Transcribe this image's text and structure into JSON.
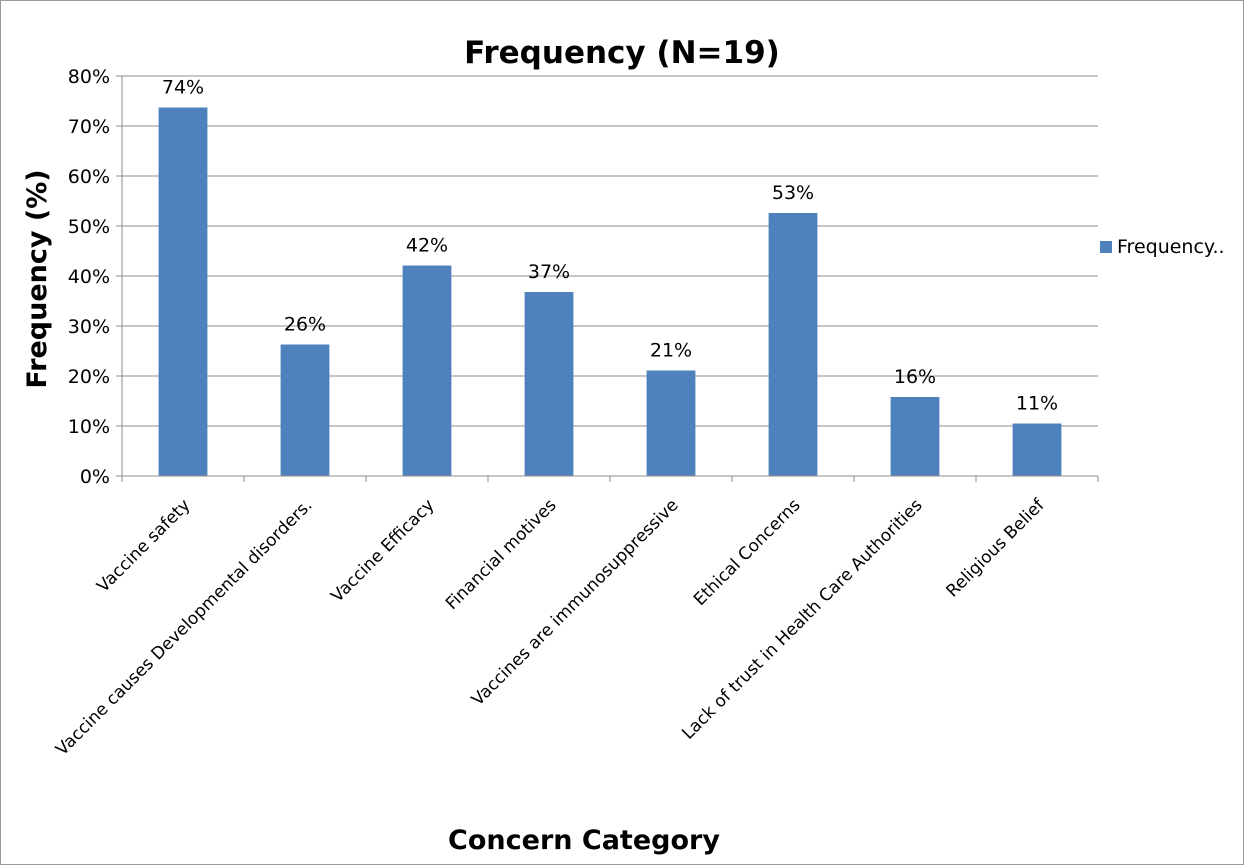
{
  "chart_data": {
    "type": "bar",
    "title": "Frequency  (N=19)",
    "xlabel": "Concern Category",
    "ylabel": "Frequency (%)",
    "ylim": [
      0,
      80
    ],
    "yticks": [
      "0%",
      "10%",
      "20%",
      "30%",
      "40%",
      "50%",
      "60%",
      "70%",
      "80%"
    ],
    "grid": true,
    "legend_position": "right",
    "categories": [
      "Vaccine safety",
      "Vaccine causes Developmental disorders.",
      "Vaccine Efficacy",
      "Financial motives",
      "Vaccines are immunosuppressive",
      "Ethical Concerns",
      "Lack of trust in Health Care Authorities",
      "Religious Belief"
    ],
    "series": [
      {
        "name": "Frequency..",
        "color": "#4f81bd",
        "values": [
          73.7,
          26.3,
          42.1,
          36.8,
          21.1,
          52.6,
          15.8,
          10.5
        ],
        "labels": [
          "74%",
          "26%",
          "42%",
          "37%",
          "21%",
          "53%",
          "16%",
          "11%"
        ]
      }
    ]
  }
}
